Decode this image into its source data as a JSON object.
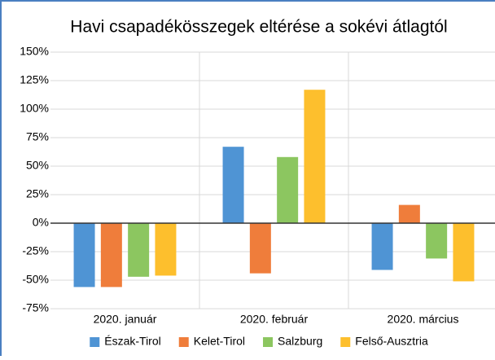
{
  "chart_data": {
    "type": "bar",
    "title": "Havi csapadékösszegek eltérése a sokévi átlagtól",
    "categories": [
      "2020. január",
      "2020. február",
      "2020. március"
    ],
    "series": [
      {
        "name": "Észak-Tirol",
        "color": "#4f94d4",
        "values": [
          -56,
          67,
          -41
        ]
      },
      {
        "name": "Kelet-Tirol",
        "color": "#ef7d3b",
        "values": [
          -56,
          -44,
          16
        ]
      },
      {
        "name": "Salzburg",
        "color": "#8cc660",
        "values": [
          -47,
          58,
          -31
        ]
      },
      {
        "name": "Felső-Ausztria",
        "color": "#fdbf2d",
        "values": [
          -46,
          117,
          -51
        ]
      }
    ],
    "ylim": [
      -75,
      150
    ],
    "yticks": [
      {
        "value": -75,
        "label": "-75%"
      },
      {
        "value": -50,
        "label": "-50%"
      },
      {
        "value": -25,
        "label": "-25%"
      },
      {
        "value": 0,
        "label": "0%"
      },
      {
        "value": 25,
        "label": "25%"
      },
      {
        "value": 50,
        "label": "50%"
      },
      {
        "value": 75,
        "label": "75%"
      },
      {
        "value": 100,
        "label": "100%"
      },
      {
        "value": 125,
        "label": "125%"
      },
      {
        "value": 150,
        "label": "150%"
      }
    ],
    "grid": true,
    "legend": "bottom"
  }
}
